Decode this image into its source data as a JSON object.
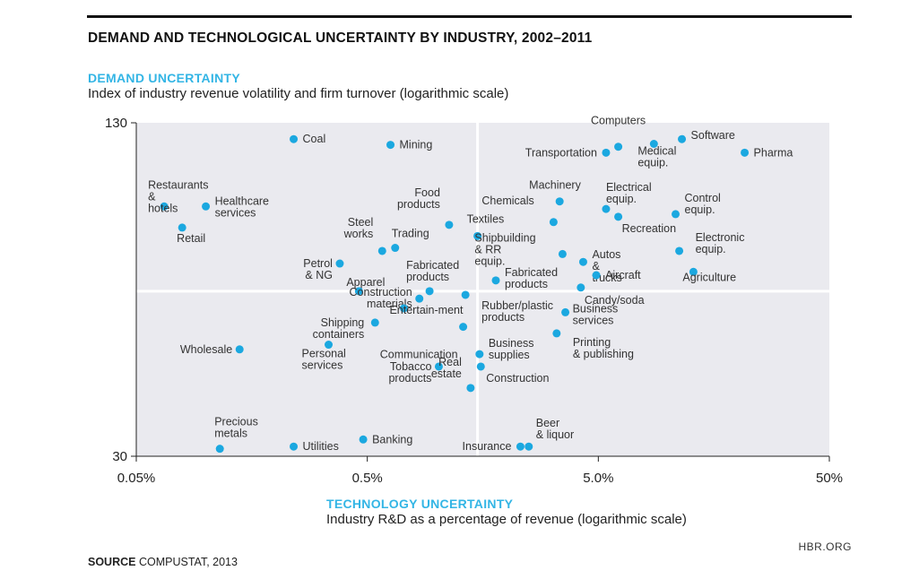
{
  "header": {
    "title": "DEMAND AND TECHNOLOGICAL UNCERTAINTY BY INDUSTRY, 2002–2011",
    "y_heading": "DEMAND UNCERTAINTY",
    "y_sub": "Index of industry revenue volatility and firm turnover (logarithmic scale)",
    "x_heading": "TECHNOLOGY UNCERTAINTY",
    "x_sub": "Industry R&D as a percentage of revenue (logarithmic scale)"
  },
  "footer": {
    "source_bold": "SOURCE",
    "source_text": " COMPUSTAT, 2013",
    "site": "HBR.ORG"
  },
  "colors": {
    "point": "#1ba8e0",
    "plot_bg": "#eaeaef",
    "divider": "#ffffff",
    "accent": "#33b5e5"
  },
  "chart_data": {
    "type": "scatter",
    "title": "DEMAND AND TECHNOLOGICAL UNCERTAINTY BY INDUSTRY, 2002–2011",
    "xlabel": "Industry R&D as a percentage of revenue (logarithmic scale)",
    "ylabel": "Index of industry revenue volatility and firm turnover (logarithmic scale)",
    "x_scale": "log",
    "y_scale": "log",
    "xlim": [
      0.05,
      50
    ],
    "ylim": [
      30,
      130
    ],
    "x_ticks": [
      {
        "value": 0.05,
        "label": "0.05%"
      },
      {
        "value": 0.5,
        "label": "0.5%"
      },
      {
        "value": 5,
        "label": "5.0%"
      },
      {
        "value": 50,
        "label": "50%"
      }
    ],
    "y_ticks": [
      {
        "value": 30,
        "label": "30"
      },
      {
        "value": 130,
        "label": "130"
      }
    ],
    "dividers": {
      "x": 1.5,
      "y": 62
    },
    "grid": false,
    "legend": "none",
    "points": [
      {
        "name": "Coal",
        "x": 0.24,
        "y": 121
      },
      {
        "name": "Mining",
        "x": 0.63,
        "y": 118
      },
      {
        "name": "Restaurants & hotels",
        "x": 0.066,
        "y": 90
      },
      {
        "name": "Healthcare services",
        "x": 0.1,
        "y": 90
      },
      {
        "name": "Retail",
        "x": 0.079,
        "y": 82
      },
      {
        "name": "Food products",
        "x": 1.13,
        "y": 83
      },
      {
        "name": "Textiles",
        "x": 1.5,
        "y": 79
      },
      {
        "name": "Steel works",
        "x": 0.58,
        "y": 74
      },
      {
        "name": "Trading",
        "x": 0.66,
        "y": 75
      },
      {
        "name": "Petrol & NG",
        "x": 0.38,
        "y": 70
      },
      {
        "name": "Apparel",
        "x": 0.46,
        "y": 62
      },
      {
        "name": "Fabricated products",
        "x": 0.93,
        "y": 62
      },
      {
        "name": "Fabricated products",
        "x": 1.8,
        "y": 65
      },
      {
        "name": "Construction materials",
        "x": 0.84,
        "y": 60
      },
      {
        "name": "Entertain-ment",
        "x": 0.72,
        "y": 57.5
      },
      {
        "name": "Shipping containers",
        "x": 0.54,
        "y": 54
      },
      {
        "name": "Rubber/plastic products",
        "x": 1.33,
        "y": 61
      },
      {
        "name": "Communication",
        "x": 1.3,
        "y": 53
      },
      {
        "name": "Wholesale",
        "x": 0.14,
        "y": 48
      },
      {
        "name": "Personal services",
        "x": 0.34,
        "y": 49
      },
      {
        "name": "Business supplies",
        "x": 1.53,
        "y": 47
      },
      {
        "name": "Tobacco products",
        "x": 1.02,
        "y": 44.5
      },
      {
        "name": "Construction",
        "x": 1.55,
        "y": 44.5
      },
      {
        "name": "Real estate",
        "x": 1.4,
        "y": 40.5
      },
      {
        "name": "Precious metals",
        "x": 0.115,
        "y": 31
      },
      {
        "name": "Utilities",
        "x": 0.24,
        "y": 31.3
      },
      {
        "name": "Banking",
        "x": 0.48,
        "y": 32.3
      },
      {
        "name": "Insurance",
        "x": 2.3,
        "y": 31.3
      },
      {
        "name": "Beer & liquor",
        "x": 2.5,
        "y": 31.3
      },
      {
        "name": "Computers",
        "x": 6.1,
        "y": 117
      },
      {
        "name": "Transportation",
        "x": 5.4,
        "y": 114
      },
      {
        "name": "Software",
        "x": 11.5,
        "y": 121
      },
      {
        "name": "Medical equip.",
        "x": 8.7,
        "y": 118.5
      },
      {
        "name": "Pharma",
        "x": 21.5,
        "y": 114
      },
      {
        "name": "Machinery",
        "x": 3.4,
        "y": 92
      },
      {
        "name": "Chemicals",
        "x": 3.2,
        "y": 84
      },
      {
        "name": "Electrical equip.",
        "x": 5.4,
        "y": 89
      },
      {
        "name": "Recreation",
        "x": 6.1,
        "y": 86
      },
      {
        "name": "Control equip.",
        "x": 10.8,
        "y": 87
      },
      {
        "name": "Shipbuilding & RR equip.",
        "x": 3.5,
        "y": 73
      },
      {
        "name": "Autos & trucks",
        "x": 4.3,
        "y": 70.5
      },
      {
        "name": "Aircraft",
        "x": 4.9,
        "y": 66.5
      },
      {
        "name": "Candy/soda",
        "x": 4.2,
        "y": 63
      },
      {
        "name": "Electronic equip.",
        "x": 11.2,
        "y": 74
      },
      {
        "name": "Agriculture",
        "x": 12.9,
        "y": 67.5
      },
      {
        "name": "Business services",
        "x": 3.6,
        "y": 56.5
      },
      {
        "name": "Printing & publishing",
        "x": 3.3,
        "y": 51.5
      }
    ]
  }
}
